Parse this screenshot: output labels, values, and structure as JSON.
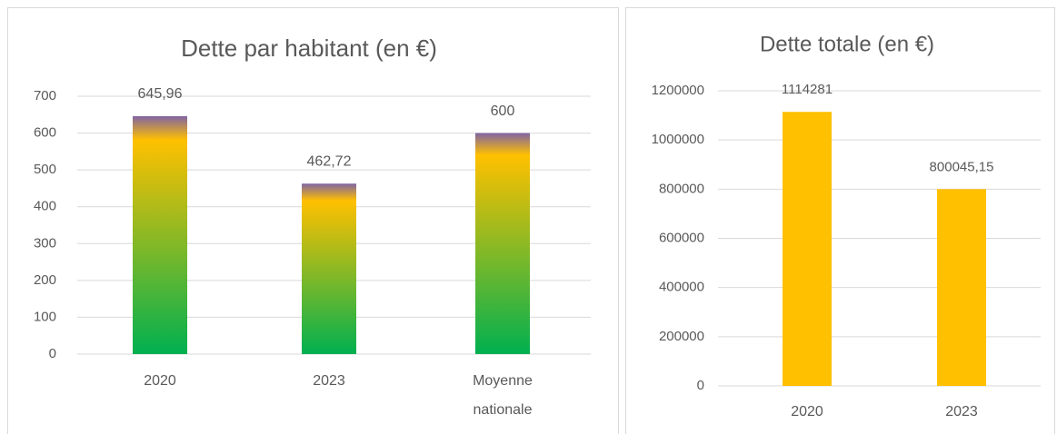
{
  "chart_data": [
    {
      "type": "bar",
      "title": "Dette par habitant (en €)",
      "categories": [
        "2020",
        "2023",
        "Moyenne nationale"
      ],
      "values": [
        645.96,
        462.72,
        600
      ],
      "value_labels": [
        "645,96",
        "462,72",
        "600"
      ],
      "gradient": [
        "#00b050",
        "#ffc000",
        "#8064a2"
      ],
      "ylim": [
        0,
        700
      ],
      "yticks": [
        0,
        100,
        200,
        300,
        400,
        500,
        600,
        700
      ],
      "grid": true
    },
    {
      "type": "bar",
      "title": "Dette totale (en €)",
      "categories": [
        "2020",
        "2023"
      ],
      "values": [
        1114281,
        800045.15
      ],
      "value_labels": [
        "1114281",
        "800045,15"
      ],
      "color": "#ffc000",
      "ylim": [
        0,
        1200000
      ],
      "yticks": [
        0,
        200000,
        400000,
        600000,
        800000,
        1000000,
        1200000
      ],
      "grid": true
    }
  ]
}
